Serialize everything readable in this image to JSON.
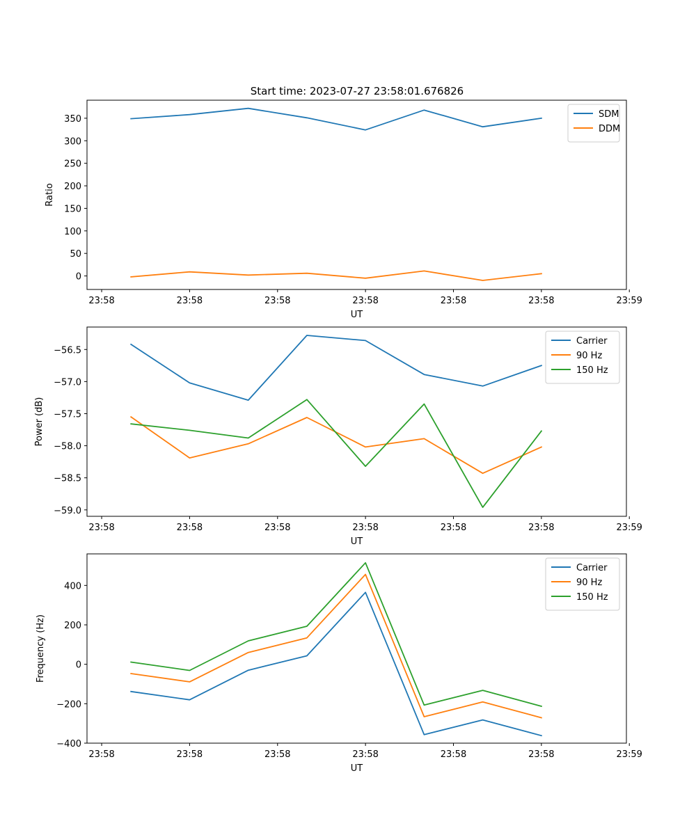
{
  "figure_title": "Start time: 2023-07-27 23:58:01.676826",
  "colors": {
    "series1": "#1f77b4",
    "series2": "#ff7f0e",
    "series3": "#2ca02c"
  },
  "chart_data": [
    {
      "type": "line",
      "title": "Start time: 2023-07-27 23:58:01.676826",
      "xlabel": "UT",
      "ylabel": "Ratio",
      "x": [
        1,
        2,
        3,
        4,
        5,
        6,
        7,
        8
      ],
      "xlim": [
        0.25,
        9.45
      ],
      "x_ticks": [
        0.5,
        2.0,
        3.5,
        5.0,
        6.5,
        8.0,
        9.5
      ],
      "x_tick_labels": [
        "23:58",
        "23:58",
        "23:58",
        "23:58",
        "23:58",
        "23:58",
        "23:59"
      ],
      "ylim": [
        -30,
        390
      ],
      "y_ticks": [
        0,
        50,
        100,
        150,
        200,
        250,
        300,
        350
      ],
      "y_tick_labels": [
        "0",
        "50",
        "100",
        "150",
        "200",
        "250",
        "300",
        "350"
      ],
      "legend_position": "top-right",
      "series": [
        {
          "name": "SDM",
          "color": "#1f77b4",
          "values": [
            349,
            358,
            372,
            351,
            324,
            368,
            331,
            350
          ]
        },
        {
          "name": "DDM",
          "color": "#ff7f0e",
          "values": [
            -2,
            9,
            2,
            6,
            -5,
            11,
            -10,
            5
          ]
        }
      ]
    },
    {
      "type": "line",
      "title": "",
      "xlabel": "UT",
      "ylabel": "Power (dB)",
      "x": [
        1,
        2,
        3,
        4,
        5,
        6,
        7,
        8
      ],
      "xlim": [
        0.25,
        9.45
      ],
      "x_ticks": [
        0.5,
        2.0,
        3.5,
        5.0,
        6.5,
        8.0,
        9.5
      ],
      "x_tick_labels": [
        "23:58",
        "23:58",
        "23:58",
        "23:58",
        "23:58",
        "23:58",
        "23:59"
      ],
      "ylim": [
        -59.1,
        -56.15
      ],
      "y_ticks": [
        -59.0,
        -58.5,
        -58.0,
        -57.5,
        -57.0,
        -56.5
      ],
      "y_tick_labels": [
        "−59.0",
        "−58.5",
        "−58.0",
        "−57.5",
        "−57.0",
        "−56.5"
      ],
      "legend_position": "top-right",
      "series": [
        {
          "name": "Carrier",
          "color": "#1f77b4",
          "values": [
            -56.42,
            -57.02,
            -57.29,
            -56.28,
            -56.36,
            -56.89,
            -57.07,
            -56.75
          ]
        },
        {
          "name": "90 Hz",
          "color": "#ff7f0e",
          "values": [
            -57.55,
            -58.19,
            -57.97,
            -57.56,
            -58.02,
            -57.89,
            -58.43,
            -58.02
          ]
        },
        {
          "name": "150 Hz",
          "color": "#2ca02c",
          "values": [
            -57.66,
            -57.76,
            -57.88,
            -57.28,
            -58.32,
            -57.35,
            -58.96,
            -57.77
          ]
        }
      ]
    },
    {
      "type": "line",
      "title": "",
      "xlabel": "UT",
      "ylabel": "Frequency (Hz)",
      "x": [
        1,
        2,
        3,
        4,
        5,
        6,
        7,
        8
      ],
      "xlim": [
        0.25,
        9.45
      ],
      "x_ticks": [
        0.5,
        2.0,
        3.5,
        5.0,
        6.5,
        8.0,
        9.5
      ],
      "x_tick_labels": [
        "23:58",
        "23:58",
        "23:58",
        "23:58",
        "23:58",
        "23:58",
        "23:59"
      ],
      "ylim": [
        -400,
        560
      ],
      "y_ticks": [
        -400,
        -200,
        0,
        200,
        400
      ],
      "y_tick_labels": [
        "−400",
        "−200",
        "0",
        "200",
        "400"
      ],
      "legend_position": "top-right",
      "series": [
        {
          "name": "Carrier",
          "color": "#1f77b4",
          "values": [
            -138,
            -180,
            -30,
            43,
            365,
            -357,
            -282,
            -362
          ]
        },
        {
          "name": "90 Hz",
          "color": "#ff7f0e",
          "values": [
            -47,
            -89,
            60,
            134,
            456,
            -266,
            -191,
            -271
          ]
        },
        {
          "name": "150 Hz",
          "color": "#2ca02c",
          "values": [
            11,
            -31,
            119,
            193,
            515,
            -207,
            -132,
            -213
          ]
        }
      ]
    }
  ]
}
